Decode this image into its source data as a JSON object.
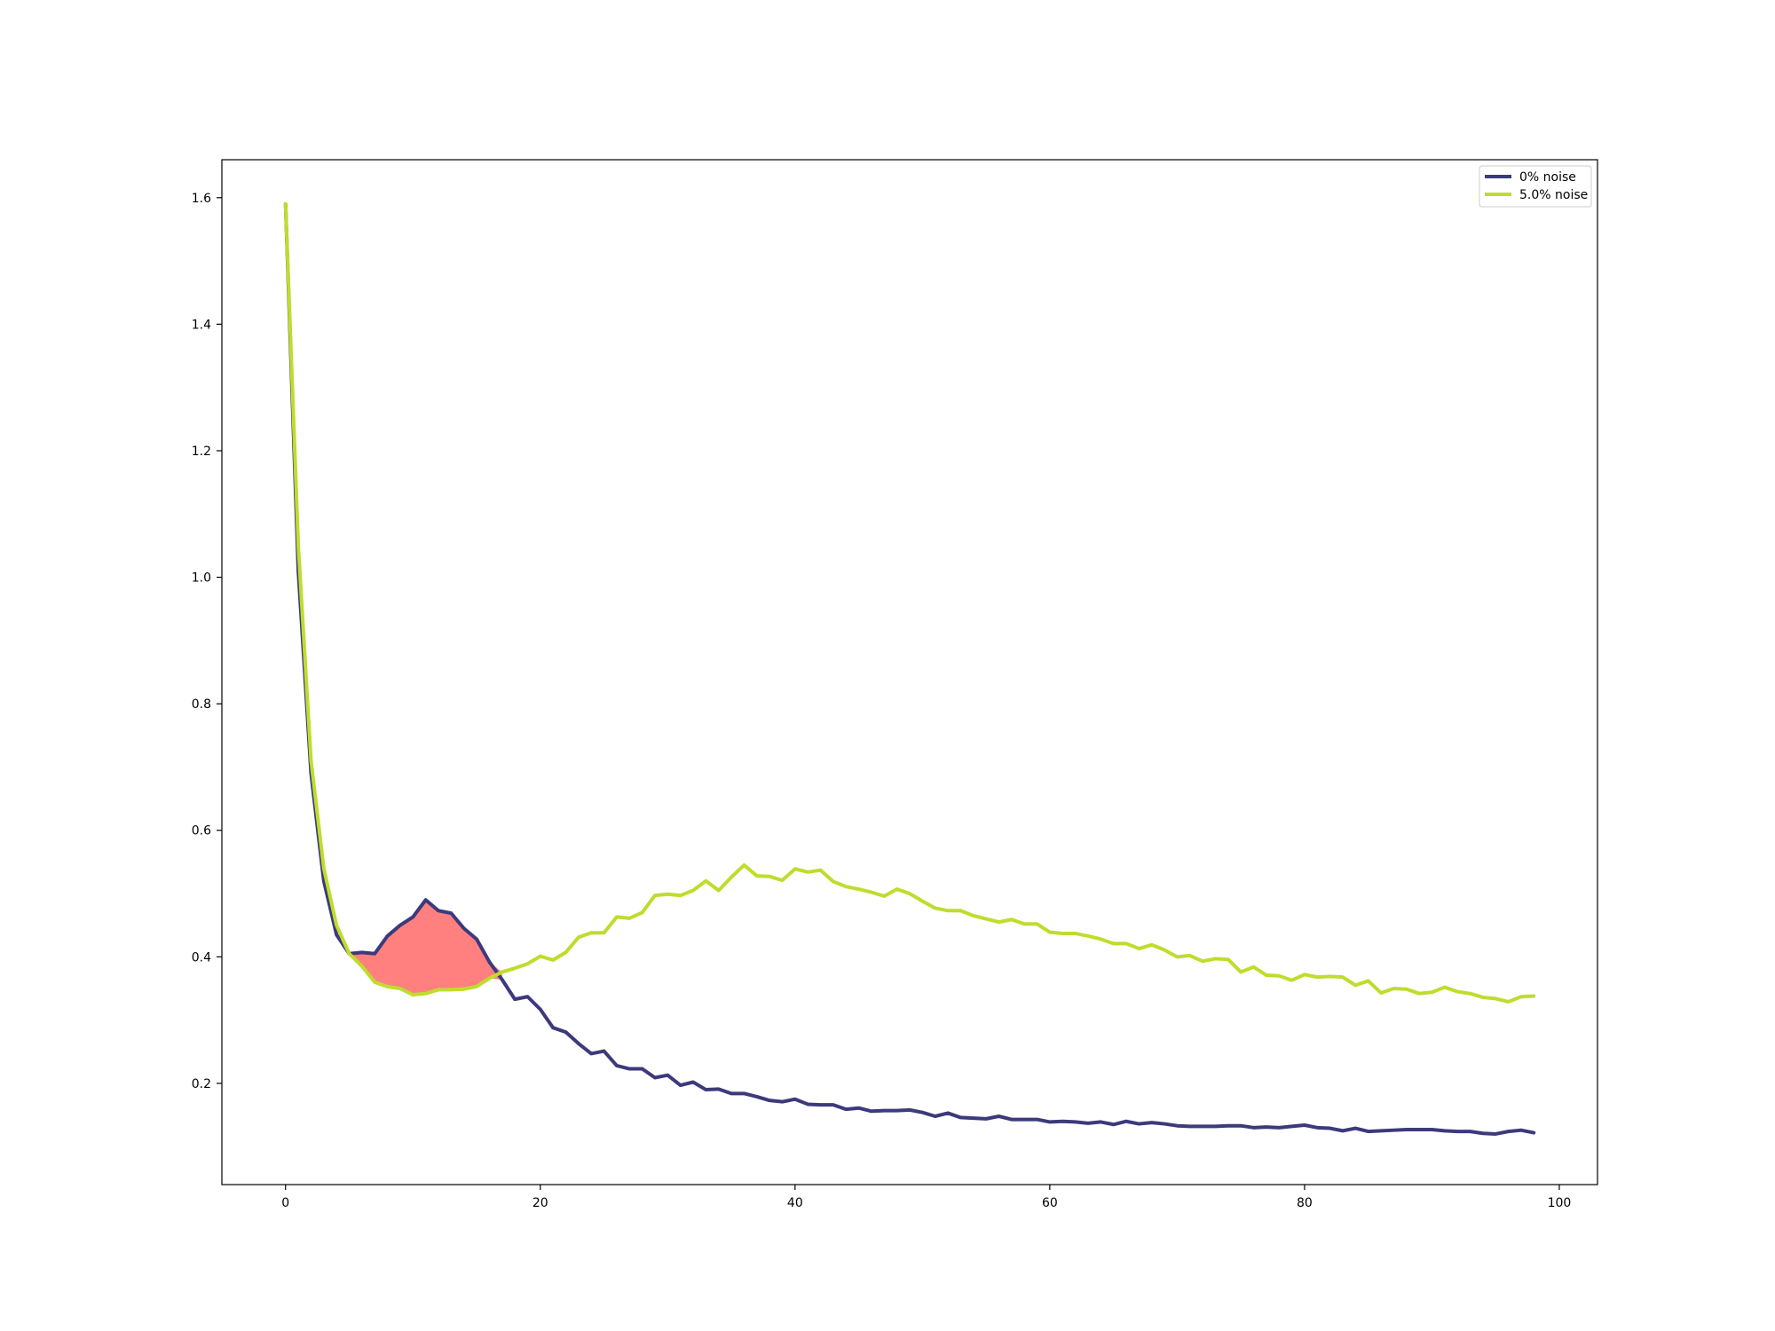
{
  "chart_data": {
    "type": "line",
    "title": "",
    "xlabel": "",
    "ylabel": "",
    "xlim": [
      -5,
      103
    ],
    "ylim": [
      0.04,
      1.66
    ],
    "x_ticks": [
      0,
      20,
      40,
      60,
      80,
      100
    ],
    "y_ticks": [
      0.2,
      0.4,
      0.6,
      0.8,
      1.0,
      1.2,
      1.4,
      1.6
    ],
    "x_tick_labels": [
      "0",
      "20",
      "40",
      "60",
      "80",
      "100"
    ],
    "y_tick_labels": [
      "0.2",
      "0.4",
      "0.6",
      "0.8",
      "1.0",
      "1.2",
      "1.4",
      "1.6"
    ],
    "grid": false,
    "legend_position": "top-right",
    "fill_between": {
      "series_a": 0,
      "series_b": 1,
      "where": "a>b",
      "x_range": [
        5,
        17
      ],
      "color": "#ff807f"
    },
    "series": [
      {
        "name": "0% noise",
        "color": "#3c3a7c",
        "x": [
          0,
          1,
          2,
          3,
          4,
          5,
          6,
          7,
          8,
          9,
          10,
          11,
          12,
          13,
          14,
          15,
          16,
          17,
          18,
          19,
          20,
          21,
          22,
          23,
          24,
          25,
          26,
          27,
          28,
          29,
          30,
          31,
          32,
          33,
          34,
          35,
          36,
          37,
          38,
          39,
          40,
          41,
          42,
          43,
          44,
          45,
          46,
          47,
          48,
          49,
          50,
          51,
          52,
          53,
          54,
          55,
          56,
          57,
          58,
          59,
          60,
          61,
          62,
          63,
          64,
          65,
          66,
          67,
          68,
          69,
          70,
          71,
          72,
          73,
          74,
          75,
          76,
          77,
          78,
          79,
          80,
          81,
          82,
          83,
          84,
          85,
          86,
          87,
          88,
          89,
          90,
          91,
          92,
          93,
          94,
          95,
          96,
          97,
          98
        ],
        "values": [
          1.59,
          1.01,
          0.69,
          0.52,
          0.435,
          0.405,
          0.407,
          0.405,
          0.433,
          0.45,
          0.463,
          0.49,
          0.473,
          0.469,
          0.445,
          0.428,
          0.392,
          0.364,
          0.333,
          0.337,
          0.317,
          0.288,
          0.281,
          0.263,
          0.247,
          0.251,
          0.228,
          0.223,
          0.223,
          0.209,
          0.213,
          0.197,
          0.202,
          0.19,
          0.191,
          0.184,
          0.184,
          0.179,
          0.173,
          0.171,
          0.175,
          0.167,
          0.166,
          0.166,
          0.159,
          0.161,
          0.156,
          0.157,
          0.157,
          0.158,
          0.154,
          0.148,
          0.153,
          0.146,
          0.145,
          0.144,
          0.148,
          0.143,
          0.143,
          0.143,
          0.139,
          0.14,
          0.139,
          0.137,
          0.139,
          0.135,
          0.14,
          0.136,
          0.138,
          0.136,
          0.133,
          0.132,
          0.132,
          0.132,
          0.133,
          0.133,
          0.13,
          0.131,
          0.13,
          0.132,
          0.134,
          0.13,
          0.129,
          0.125,
          0.129,
          0.124,
          0.125,
          0.126,
          0.127,
          0.127,
          0.127,
          0.125,
          0.124,
          0.124,
          0.121,
          0.12,
          0.124,
          0.126,
          0.122
        ]
      },
      {
        "name": "5.0% noise",
        "color": "#bedd2c",
        "x": [
          0,
          1,
          2,
          3,
          4,
          5,
          6,
          7,
          8,
          9,
          10,
          11,
          12,
          13,
          14,
          15,
          16,
          17,
          18,
          19,
          20,
          21,
          22,
          23,
          24,
          25,
          26,
          27,
          28,
          29,
          30,
          31,
          32,
          33,
          34,
          35,
          36,
          37,
          38,
          39,
          40,
          41,
          42,
          43,
          44,
          45,
          46,
          47,
          48,
          49,
          50,
          51,
          52,
          53,
          54,
          55,
          56,
          57,
          58,
          59,
          60,
          61,
          62,
          63,
          64,
          65,
          66,
          67,
          68,
          69,
          70,
          71,
          72,
          73,
          74,
          75,
          76,
          77,
          78,
          79,
          80,
          81,
          82,
          83,
          84,
          85,
          86,
          87,
          88,
          89,
          90,
          91,
          92,
          93,
          94,
          95,
          96,
          97,
          98
        ],
        "values": [
          1.59,
          1.05,
          0.71,
          0.54,
          0.45,
          0.405,
          0.385,
          0.36,
          0.353,
          0.35,
          0.34,
          0.342,
          0.348,
          0.348,
          0.349,
          0.353,
          0.366,
          0.376,
          0.382,
          0.389,
          0.401,
          0.395,
          0.407,
          0.431,
          0.438,
          0.438,
          0.463,
          0.461,
          0.47,
          0.497,
          0.499,
          0.497,
          0.505,
          0.52,
          0.505,
          0.526,
          0.545,
          0.528,
          0.527,
          0.521,
          0.539,
          0.534,
          0.537,
          0.519,
          0.511,
          0.507,
          0.502,
          0.496,
          0.507,
          0.5,
          0.488,
          0.477,
          0.473,
          0.473,
          0.465,
          0.46,
          0.455,
          0.459,
          0.452,
          0.452,
          0.439,
          0.437,
          0.437,
          0.433,
          0.428,
          0.421,
          0.421,
          0.413,
          0.419,
          0.411,
          0.4,
          0.402,
          0.393,
          0.397,
          0.396,
          0.376,
          0.384,
          0.371,
          0.37,
          0.363,
          0.372,
          0.368,
          0.369,
          0.368,
          0.355,
          0.362,
          0.343,
          0.35,
          0.349,
          0.342,
          0.344,
          0.352,
          0.345,
          0.342,
          0.336,
          0.334,
          0.329,
          0.337,
          0.338
        ]
      }
    ]
  }
}
